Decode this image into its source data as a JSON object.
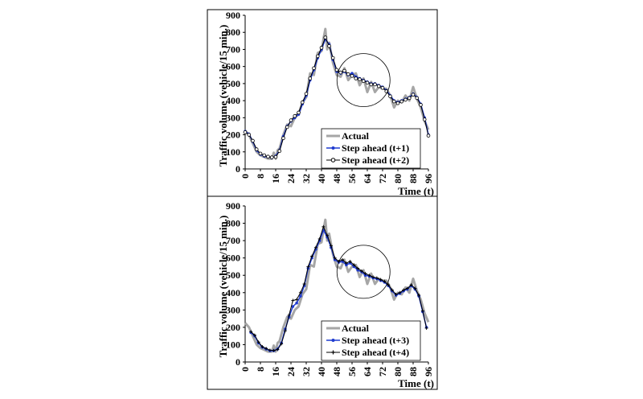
{
  "chart_data": [
    {
      "type": "line",
      "xlabel": "Time (t)",
      "ylabel": "Traffic volume (vehicle/15 min.)",
      "xlim": [
        0,
        96
      ],
      "ylim": [
        0,
        900
      ],
      "xticks": [
        "0",
        "8",
        "16",
        "24",
        "32",
        "40",
        "48",
        "56",
        "64",
        "72",
        "80",
        "88",
        "96"
      ],
      "yticks": [
        "0",
        "100",
        "200",
        "300",
        "400",
        "500",
        "600",
        "700",
        "800",
        "900"
      ],
      "legend_position": "bottom-right",
      "highlight_circle": {
        "x": 62,
        "y": 520
      },
      "series": [
        {
          "name": "Actual",
          "color": "#a6a6a6",
          "x": [
            0,
            2,
            4,
            6,
            8,
            10,
            12,
            14,
            15,
            16,
            17,
            18,
            20,
            22,
            24,
            26,
            28,
            30,
            32,
            34,
            36,
            38,
            40,
            41,
            42,
            43,
            44,
            46,
            48,
            50,
            52,
            54,
            56,
            58,
            60,
            62,
            64,
            66,
            68,
            70,
            72,
            74,
            76,
            78,
            80,
            82,
            84,
            86,
            88,
            90,
            92,
            94,
            96
          ],
          "y": [
            225,
            200,
            150,
            100,
            80,
            70,
            60,
            60,
            95,
            60,
            110,
            120,
            200,
            260,
            250,
            300,
            320,
            390,
            420,
            560,
            550,
            680,
            690,
            760,
            820,
            700,
            740,
            620,
            550,
            540,
            590,
            520,
            550,
            560,
            490,
            530,
            450,
            510,
            450,
            480,
            470,
            470,
            430,
            360,
            400,
            390,
            430,
            400,
            480,
            410,
            360,
            280,
            230
          ]
        },
        {
          "name": "Step ahead (t+1)",
          "color": "#1f3bcf",
          "x": [
            0,
            2,
            4,
            6,
            8,
            10,
            12,
            14,
            16,
            18,
            20,
            22,
            24,
            26,
            28,
            30,
            32,
            34,
            36,
            38,
            40,
            42,
            44,
            46,
            48,
            50,
            52,
            54,
            56,
            58,
            60,
            62,
            64,
            66,
            68,
            70,
            72,
            74,
            76,
            78,
            80,
            82,
            84,
            86,
            88,
            90,
            92,
            94,
            96
          ],
          "y": [
            220,
            205,
            160,
            110,
            85,
            75,
            70,
            65,
            75,
            110,
            190,
            250,
            280,
            300,
            320,
            380,
            430,
            520,
            580,
            650,
            700,
            760,
            730,
            640,
            570,
            560,
            570,
            550,
            560,
            540,
            530,
            520,
            510,
            500,
            500,
            490,
            480,
            460,
            430,
            400,
            390,
            400,
            410,
            420,
            440,
            420,
            380,
            300,
            200
          ]
        },
        {
          "name": "Step ahead (t+2)",
          "color": "#000000",
          "x": [
            0,
            2,
            4,
            6,
            8,
            10,
            12,
            14,
            16,
            18,
            20,
            22,
            24,
            26,
            28,
            30,
            32,
            34,
            36,
            38,
            40,
            42,
            44,
            46,
            48,
            50,
            52,
            54,
            56,
            58,
            60,
            62,
            64,
            66,
            68,
            70,
            72,
            74,
            76,
            78,
            80,
            82,
            84,
            86,
            88,
            90,
            92,
            94,
            96
          ],
          "y": [
            215,
            200,
            165,
            115,
            90,
            80,
            72,
            68,
            70,
            105,
            180,
            245,
            285,
            310,
            330,
            390,
            440,
            530,
            590,
            660,
            710,
            770,
            720,
            650,
            580,
            565,
            575,
            555,
            545,
            530,
            525,
            515,
            505,
            495,
            495,
            485,
            475,
            455,
            425,
            395,
            385,
            395,
            405,
            415,
            435,
            415,
            375,
            290,
            195
          ]
        }
      ]
    },
    {
      "type": "line",
      "xlabel": "Time (t)",
      "ylabel": "Traffic volume (vehicle/15 min.)",
      "xlim": [
        0,
        96
      ],
      "ylim": [
        0,
        900
      ],
      "xticks": [
        "0",
        "8",
        "16",
        "24",
        "32",
        "40",
        "48",
        "56",
        "64",
        "72",
        "80",
        "88",
        "96"
      ],
      "yticks": [
        "0",
        "100",
        "200",
        "300",
        "400",
        "500",
        "600",
        "700",
        "800",
        "900"
      ],
      "legend_position": "bottom-right",
      "highlight_circle": {
        "x": 62,
        "y": 520
      },
      "series": [
        {
          "name": "Actual",
          "color": "#a6a6a6",
          "x": [
            0,
            2,
            4,
            6,
            8,
            10,
            12,
            14,
            15,
            16,
            17,
            18,
            20,
            22,
            24,
            26,
            28,
            30,
            32,
            34,
            36,
            38,
            40,
            41,
            42,
            43,
            44,
            46,
            48,
            50,
            52,
            54,
            56,
            58,
            60,
            62,
            64,
            66,
            68,
            70,
            72,
            74,
            76,
            78,
            80,
            82,
            84,
            86,
            88,
            90,
            92,
            94,
            96
          ],
          "y": [
            225,
            200,
            150,
            100,
            80,
            70,
            60,
            60,
            95,
            60,
            110,
            120,
            200,
            260,
            250,
            300,
            320,
            390,
            420,
            560,
            550,
            680,
            690,
            760,
            820,
            700,
            740,
            620,
            550,
            540,
            590,
            520,
            550,
            560,
            490,
            530,
            450,
            510,
            450,
            480,
            470,
            470,
            430,
            360,
            400,
            390,
            430,
            400,
            480,
            410,
            360,
            280,
            230
          ]
        },
        {
          "name": "Step ahead (t+3)",
          "color": "#1f3bcf",
          "x": [
            3,
            5,
            7,
            9,
            11,
            13,
            15,
            17,
            19,
            21,
            23,
            25,
            27,
            29,
            31,
            33,
            35,
            37,
            39,
            41,
            43,
            45,
            47,
            49,
            51,
            53,
            55,
            57,
            59,
            61,
            63,
            65,
            67,
            69,
            71,
            73,
            75,
            77,
            79,
            81,
            83,
            85,
            87,
            89,
            91,
            93,
            95
          ],
          "y": [
            170,
            150,
            110,
            85,
            75,
            65,
            65,
            75,
            110,
            190,
            260,
            320,
            340,
            380,
            440,
            540,
            600,
            650,
            700,
            760,
            720,
            660,
            590,
            575,
            580,
            560,
            570,
            550,
            530,
            520,
            500,
            495,
            485,
            480,
            470,
            460,
            440,
            410,
            385,
            395,
            410,
            420,
            440,
            420,
            380,
            290,
            200
          ]
        },
        {
          "name": "Step ahead (t+4)",
          "color": "#000000",
          "x": [
            3,
            5,
            7,
            9,
            11,
            13,
            15,
            17,
            19,
            21,
            23,
            25,
            27,
            29,
            31,
            33,
            35,
            37,
            39,
            41,
            43,
            45,
            47,
            49,
            51,
            53,
            55,
            57,
            59,
            61,
            63,
            65,
            67,
            69,
            71,
            73,
            75,
            77,
            79,
            81,
            83,
            85,
            87,
            89,
            91,
            93,
            95
          ],
          "y": [
            175,
            155,
            115,
            88,
            78,
            68,
            66,
            72,
            105,
            180,
            270,
            355,
            360,
            400,
            450,
            550,
            610,
            660,
            710,
            780,
            730,
            670,
            600,
            580,
            590,
            570,
            580,
            560,
            540,
            525,
            510,
            500,
            490,
            485,
            475,
            465,
            445,
            415,
            390,
            400,
            415,
            425,
            445,
            425,
            385,
            295,
            195
          ]
        }
      ]
    }
  ]
}
